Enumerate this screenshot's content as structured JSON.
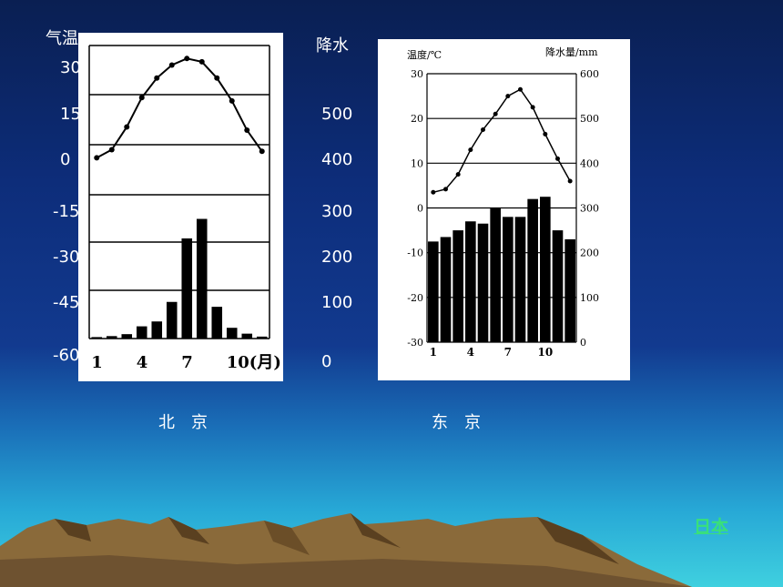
{
  "left_axis": {
    "title": "气温",
    "ticks": [
      "30",
      "15",
      "0",
      "-15",
      "-30",
      "-45",
      "-60"
    ]
  },
  "middle_axis": {
    "title": "降水",
    "ticks": [
      "500",
      "400",
      "300",
      "200",
      "100",
      "0"
    ]
  },
  "captions": {
    "beijing": "北　京",
    "tokyo": "东　京"
  },
  "link": {
    "label": "日本"
  },
  "colors": {
    "background_top": "#0a1f52",
    "background_bottom": "#3fd0df",
    "link": "#39e07a"
  },
  "chart_data": [
    {
      "type": "bar",
      "city": "北京",
      "months": [
        1,
        2,
        3,
        4,
        5,
        6,
        7,
        8,
        9,
        10,
        11,
        12
      ],
      "x_tick_labels": [
        "1",
        "4",
        "7",
        "10(月)"
      ],
      "series": [
        {
          "type": "line",
          "values": [
            -4.5,
            -2,
            5,
            14,
            20,
            24,
            26,
            25,
            20,
            13,
            4,
            -2.5
          ]
        },
        {
          "type": "bar",
          "values": [
            3,
            5,
            9,
            25,
            35,
            75,
            205,
            245,
            65,
            22,
            10,
            4
          ]
        }
      ],
      "temp_range": [
        -60,
        30
      ],
      "precip_range": [
        0,
        600
      ]
    },
    {
      "type": "bar",
      "city": "东京",
      "title_left": "温度/℃",
      "title_right": "降水量/mm",
      "months": [
        1,
        2,
        3,
        4,
        5,
        6,
        7,
        8,
        9,
        10,
        11,
        12
      ],
      "x_tick_labels": [
        "1",
        "4",
        "7",
        "10"
      ],
      "temp_range": [
        -30,
        30
      ],
      "temp_ticks": [
        "30",
        "20",
        "10",
        "0",
        "-10",
        "-20",
        "-30"
      ],
      "precip_range": [
        0,
        600
      ],
      "precip_ticks": [
        "600",
        "500",
        "400",
        "300",
        "200",
        "100",
        "0"
      ],
      "series": [
        {
          "type": "line",
          "values": [
            3.5,
            4.2,
            7.5,
            13,
            17.5,
            21,
            25,
            26.5,
            22.5,
            16.5,
            11,
            6
          ]
        },
        {
          "type": "bar",
          "values": [
            225,
            235,
            250,
            270,
            265,
            300,
            280,
            280,
            320,
            325,
            250,
            230
          ]
        }
      ]
    }
  ]
}
